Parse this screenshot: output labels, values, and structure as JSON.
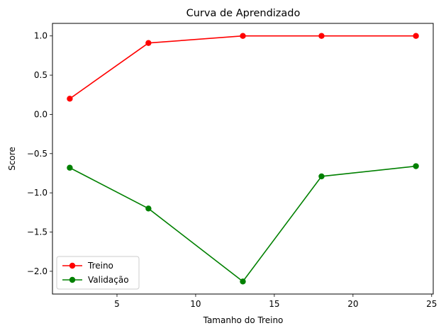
{
  "chart_data": {
    "type": "line",
    "title": "Curva de Aprendizado",
    "xlabel": "Tamanho do Treino",
    "ylabel": "Score",
    "x": [
      2,
      7,
      13,
      18,
      24
    ],
    "series": [
      {
        "name": "Treino",
        "color": "#ff0000",
        "values": [
          0.2,
          0.91,
          1.0,
          1.0,
          1.0
        ]
      },
      {
        "name": "Validação",
        "color": "#008000",
        "values": [
          -0.68,
          -1.2,
          -2.13,
          -0.79,
          -0.66
        ]
      }
    ],
    "xlim": [
      0.9,
      25.1
    ],
    "ylim": [
      -2.29,
      1.16
    ],
    "xticks": [
      5,
      10,
      15,
      20,
      25
    ],
    "yticks": [
      1.0,
      0.5,
      0.0,
      -0.5,
      -1.0,
      -1.5,
      -2.0
    ],
    "xtick_labels": [
      "5",
      "10",
      "15",
      "20",
      "25"
    ],
    "ytick_labels": [
      "1.0",
      "0.5",
      "0.0",
      "−0.5",
      "−1.0",
      "−1.5",
      "−2.0"
    ],
    "grid": false,
    "legend_position": "lower-left"
  }
}
